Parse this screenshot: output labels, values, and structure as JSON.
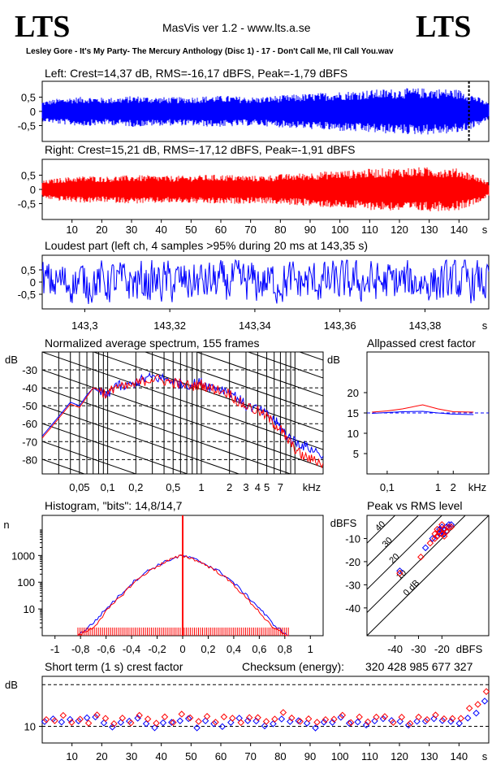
{
  "header": {
    "logo_left": "LTS",
    "logo_right": "LTS",
    "app_title": "MasVis ver 1.2 - www.lts.a.se",
    "file_name": "Lesley Gore - It's My Party- The Mercury Anthology (Disc 1) - 17 - Don't Call Me, I'll Call You.wav"
  },
  "colors": {
    "left": "#0000ff",
    "right": "#ff0000",
    "axis": "#000000"
  },
  "chart_data": [
    {
      "id": "left_waveform",
      "type": "line",
      "title": "Left: Crest=14,37 dB, RMS=-16,17 dBFS, Peak=-1,79 dBFS",
      "yticks": [
        "0,5",
        "0",
        "-0,5"
      ],
      "ylim": [
        -1,
        1
      ],
      "xlim": [
        0,
        150
      ],
      "marker_x": 143.35,
      "series": [
        {
          "name": "Left",
          "envelope_amplitude": [
            0.35,
            0.45,
            0.5,
            0.52,
            0.48,
            0.5,
            0.55,
            0.52,
            0.5,
            0.5,
            0.52,
            0.55,
            0.55,
            0.52,
            0.5,
            0.55,
            0.58,
            0.62,
            0.65,
            0.7,
            0.72,
            0.75,
            0.78,
            0.8,
            0.82,
            0.82,
            0.8,
            0.78,
            0.6,
            0.3
          ]
        }
      ]
    },
    {
      "id": "right_waveform",
      "type": "line",
      "title": "Right: Crest=15,21 dB, RMS=-17,12 dBFS, Peak=-1,91 dBFS",
      "yticks": [
        "0,5",
        "0",
        "-0,5"
      ],
      "ylim": [
        -1,
        1
      ],
      "xlim": [
        0,
        150
      ],
      "xticks": [
        "10",
        "20",
        "30",
        "40",
        "50",
        "60",
        "70",
        "80",
        "90",
        "100",
        "110",
        "120",
        "130",
        "140"
      ],
      "xunit": "s",
      "series": [
        {
          "name": "Right",
          "envelope_amplitude": [
            0.3,
            0.4,
            0.45,
            0.48,
            0.45,
            0.48,
            0.5,
            0.5,
            0.48,
            0.48,
            0.5,
            0.52,
            0.52,
            0.5,
            0.48,
            0.52,
            0.55,
            0.58,
            0.62,
            0.66,
            0.68,
            0.72,
            0.74,
            0.76,
            0.78,
            0.78,
            0.76,
            0.74,
            0.55,
            0.25
          ]
        }
      ]
    },
    {
      "id": "loudest_part",
      "type": "line",
      "title": "Loudest part (left  ch, 4 samples >95% during 20 ms at 143,35 s)",
      "yticks": [
        "0,5",
        "0",
        "-0,5"
      ],
      "xticks": [
        "143,3",
        "143,32",
        "143,34",
        "143,36",
        "143,38"
      ],
      "xlim": [
        143.29,
        143.395
      ],
      "xunit": "s"
    },
    {
      "id": "avg_spectrum",
      "type": "line",
      "title": "Normalized average spectrum, 155 frames",
      "ylabel": "dB",
      "yticks": [
        -30,
        -40,
        -50,
        -60,
        -70,
        -80
      ],
      "ylim": [
        -88,
        -20
      ],
      "xticks": [
        "0,05",
        "0,1",
        "0,2",
        "0,5",
        "1",
        "2",
        "3",
        "4",
        "5",
        "7"
      ],
      "xtick_values": [
        0.05,
        0.1,
        0.2,
        0.5,
        1,
        2,
        3,
        4,
        5,
        7
      ],
      "xlim_khz": [
        0.02,
        20
      ],
      "xunit": "kHz",
      "series": [
        {
          "name": "Left",
          "x": [
            0.02,
            0.03,
            0.04,
            0.05,
            0.06,
            0.07,
            0.08,
            0.1,
            0.12,
            0.15,
            0.2,
            0.25,
            0.3,
            0.4,
            0.5,
            0.6,
            0.8,
            1,
            1.2,
            1.5,
            2,
            2.5,
            3,
            4,
            5,
            6,
            7,
            8,
            10,
            12,
            15,
            20
          ],
          "y": [
            -67,
            -56,
            -48,
            -50,
            -44,
            -40,
            -42,
            -45,
            -38,
            -40,
            -37,
            -35,
            -34,
            -35,
            -36,
            -38,
            -38,
            -37,
            -39,
            -40,
            -42,
            -46,
            -50,
            -52,
            -55,
            -58,
            -62,
            -66,
            -70,
            -72,
            -74,
            -78
          ]
        },
        {
          "name": "Right",
          "x": [
            0.02,
            0.03,
            0.04,
            0.05,
            0.06,
            0.07,
            0.08,
            0.1,
            0.12,
            0.15,
            0.2,
            0.25,
            0.3,
            0.4,
            0.5,
            0.6,
            0.8,
            1,
            1.2,
            1.5,
            2,
            2.5,
            3,
            4,
            5,
            6,
            7,
            8,
            10,
            12,
            15,
            20
          ],
          "y": [
            -68,
            -57,
            -49,
            -51,
            -45,
            -40,
            -41,
            -44,
            -39,
            -40,
            -38,
            -36,
            -35,
            -36,
            -37,
            -38,
            -39,
            -38,
            -40,
            -41,
            -43,
            -48,
            -50,
            -53,
            -56,
            -60,
            -63,
            -68,
            -74,
            -78,
            -80,
            -82
          ]
        }
      ]
    },
    {
      "id": "allpassed_crest",
      "type": "line",
      "title": "Allpassed crest factor",
      "ylabel": "dB",
      "yticks": [
        20,
        15,
        10,
        5
      ],
      "ylim": [
        0,
        30
      ],
      "xticks": [
        "0,1",
        "1",
        "2",
        "kHz"
      ],
      "series": [
        {
          "name": "Left",
          "x": [
            0.05,
            0.1,
            0.2,
            0.5,
            1,
            2,
            5
          ],
          "y": [
            14.9,
            15.1,
            15.3,
            15.4,
            15.0,
            14.7,
            14.6
          ]
        },
        {
          "name": "Right",
          "x": [
            0.05,
            0.1,
            0.2,
            0.5,
            1,
            2,
            5
          ],
          "y": [
            15.2,
            15.5,
            16.0,
            17.0,
            16.0,
            15.3,
            15.2
          ]
        }
      ]
    },
    {
      "id": "histogram",
      "type": "line",
      "title": "Histogram, \"bits\": 14,8/14,7",
      "ylabel": "n",
      "yticks": [
        "1000",
        "100",
        "10"
      ],
      "xticks": [
        "-1",
        "-0,8",
        "-0,6",
        "-0,4",
        "-0,2",
        "0",
        "0,2",
        "0,4",
        "0,6",
        "0,8",
        "1"
      ],
      "xlim": [
        -1.1,
        1.1
      ],
      "series": [
        {
          "name": "Left",
          "x": [
            -0.82,
            -0.7,
            -0.6,
            -0.5,
            -0.4,
            -0.3,
            -0.2,
            -0.1,
            0,
            0.1,
            0.2,
            0.3,
            0.4,
            0.5,
            0.6,
            0.7,
            0.82
          ],
          "y": [
            1,
            3,
            10,
            30,
            90,
            220,
            420,
            700,
            1000,
            700,
            430,
            230,
            95,
            32,
            11,
            3,
            1
          ]
        },
        {
          "name": "Right",
          "x": [
            -0.82,
            -0.7,
            -0.6,
            -0.5,
            -0.4,
            -0.3,
            -0.2,
            -0.1,
            0,
            0.1,
            0.2,
            0.3,
            0.4,
            0.5,
            0.6,
            0.7,
            0.82
          ],
          "y": [
            1,
            2,
            8,
            25,
            80,
            200,
            400,
            690,
            1000,
            690,
            400,
            200,
            80,
            25,
            8,
            2,
            1
          ]
        }
      ]
    },
    {
      "id": "peak_vs_rms",
      "type": "scatter",
      "title": "Peak vs RMS level",
      "ylabel": "dBFS",
      "xlabel": "dBFS",
      "yticks": [
        -10,
        -20,
        -30,
        -40
      ],
      "xticks": [
        -40,
        -30,
        -20
      ],
      "diagonal_labels": [
        "40",
        "30",
        "20",
        "10",
        "0 dB"
      ],
      "series": [
        {
          "name": "Left",
          "points": [
            [
              -38,
              -24
            ],
            [
              -27,
              -14
            ],
            [
              -24,
              -10
            ],
            [
              -22,
              -9
            ],
            [
              -21,
              -8
            ],
            [
              -20,
              -7
            ],
            [
              -19,
              -6
            ],
            [
              -18,
              -5
            ],
            [
              -20,
              -5
            ],
            [
              -17,
              -4
            ],
            [
              -19,
              -8
            ],
            [
              -21,
              -6
            ],
            [
              -18,
              -7
            ],
            [
              -16,
              -4
            ]
          ]
        },
        {
          "name": "Right",
          "points": [
            [
              -38,
              -25
            ],
            [
              -29,
              -18
            ],
            [
              -25,
              -12
            ],
            [
              -23,
              -10
            ],
            [
              -22,
              -9
            ],
            [
              -21,
              -7
            ],
            [
              -20,
              -8
            ],
            [
              -19,
              -6
            ],
            [
              -18,
              -7
            ],
            [
              -22,
              -6
            ],
            [
              -17,
              -5
            ],
            [
              -20,
              -4
            ],
            [
              -23,
              -8
            ],
            [
              -16,
              -5
            ],
            [
              -19,
              -9
            ]
          ]
        }
      ]
    },
    {
      "id": "short_term_crest",
      "type": "scatter",
      "title": "Short term (1 s) crest factor",
      "ylabel": "dB",
      "yticks": [
        "10"
      ],
      "checksum_label": "Checksum (energy):",
      "checksum_value": "320 428 985 677 327",
      "xticks": [
        "10",
        "20",
        "30",
        "40",
        "50",
        "60",
        "70",
        "80",
        "90",
        "100",
        "110",
        "120",
        "130",
        "140"
      ],
      "xunit": "s",
      "series": [
        {
          "name": "Left",
          "y": [
            11,
            12,
            11,
            12,
            11,
            12,
            12,
            11,
            10,
            11,
            11,
            12,
            11,
            10,
            11,
            11,
            11,
            12,
            10,
            11,
            11,
            10,
            11,
            12,
            11,
            11,
            10,
            11,
            12,
            11,
            11,
            11,
            10,
            11,
            11,
            12,
            11,
            11,
            10,
            11,
            12,
            11,
            11,
            10,
            11,
            11,
            12,
            11,
            11,
            11,
            12,
            13,
            16
          ]
        },
        {
          "name": "Right",
          "y": [
            12,
            11,
            13,
            11,
            12,
            11,
            13,
            12,
            11,
            12,
            11,
            13,
            12,
            11,
            12,
            11,
            13,
            12,
            11,
            12,
            11,
            12,
            12,
            11,
            12,
            12,
            11,
            12,
            13,
            12,
            11,
            12,
            11,
            12,
            12,
            13,
            11,
            12,
            11,
            12,
            12,
            11,
            12,
            11,
            12,
            12,
            13,
            12,
            12,
            12,
            14,
            15,
            18
          ]
        }
      ]
    }
  ]
}
